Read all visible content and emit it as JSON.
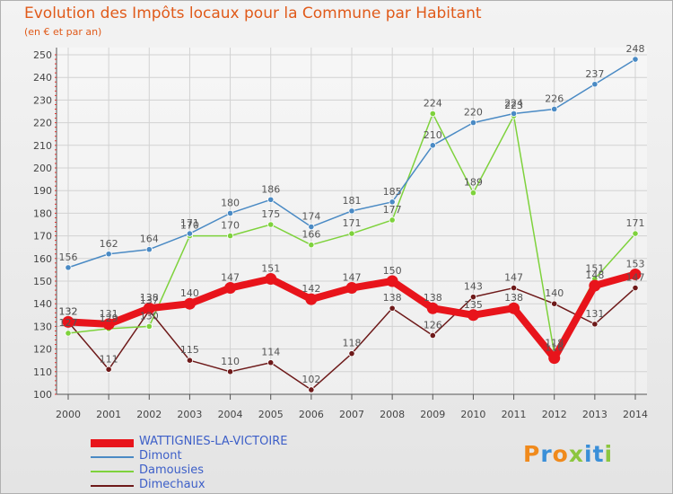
{
  "title": "Evolution des Impôts locaux pour la Commune par Habitant",
  "subtitle": "(en € et par an)",
  "logo": {
    "text": "Proxiti",
    "colors": [
      "#f08a1c",
      "#3a8fd8",
      "#f08a1c",
      "#8cc63f",
      "#3a8fd8",
      "#3a8fd8",
      "#8cc63f"
    ]
  },
  "chart_data": {
    "type": "line",
    "x": [
      "2000",
      "2001",
      "2002",
      "2003",
      "2004",
      "2005",
      "2006",
      "2007",
      "2008",
      "2009",
      "2010",
      "2011",
      "2012",
      "2013",
      "2014"
    ],
    "ylim": [
      100,
      250
    ],
    "yticks": [
      100,
      110,
      120,
      130,
      140,
      150,
      160,
      170,
      180,
      190,
      200,
      210,
      220,
      230,
      240,
      250
    ],
    "grid": true,
    "legend_position": "bottom-left",
    "series": [
      {
        "name": "WATTIGNIES-LA-VICTOIRE",
        "color": "#e8141b",
        "values": [
          132,
          131,
          138,
          140,
          147,
          151,
          142,
          147,
          150,
          138,
          135,
          138,
          116,
          148,
          153
        ],
        "labels": [
          "132",
          "131",
          "138",
          "140",
          "147",
          "151",
          "142",
          "147",
          "150",
          "138",
          "135",
          "138",
          "116",
          "148",
          "153"
        ]
      },
      {
        "name": "Dimont",
        "color": "#4a8ac4",
        "values": [
          156,
          162,
          164,
          171,
          180,
          186,
          174,
          181,
          185,
          210,
          220,
          224,
          226,
          237,
          248
        ],
        "labels": [
          "156",
          "162",
          "164",
          "171",
          "180",
          "186",
          "174",
          "181",
          "185",
          "210",
          "220",
          "224",
          "226",
          "237",
          "248"
        ]
      },
      {
        "name": "Damousies",
        "color": "#7ed23c",
        "values": [
          127,
          129,
          130,
          170,
          170,
          175,
          166,
          171,
          177,
          224,
          189,
          223,
          118,
          151,
          171
        ],
        "labels": [
          "127",
          "129",
          "130",
          "170",
          "170",
          "175",
          "166",
          "171",
          "177",
          "224",
          "189",
          "223",
          "118",
          "151",
          "171"
        ]
      },
      {
        "name": "Dimechaux",
        "color": "#6e1a1a",
        "values": [
          132,
          111,
          137,
          115,
          110,
          114,
          102,
          118,
          138,
          126,
          143,
          147,
          140,
          131,
          147
        ],
        "labels": [
          "132",
          "111",
          "137",
          "115",
          "110",
          "114",
          "102",
          "118",
          "138",
          "126",
          "143",
          "147",
          "140",
          "131",
          "147"
        ]
      }
    ]
  }
}
